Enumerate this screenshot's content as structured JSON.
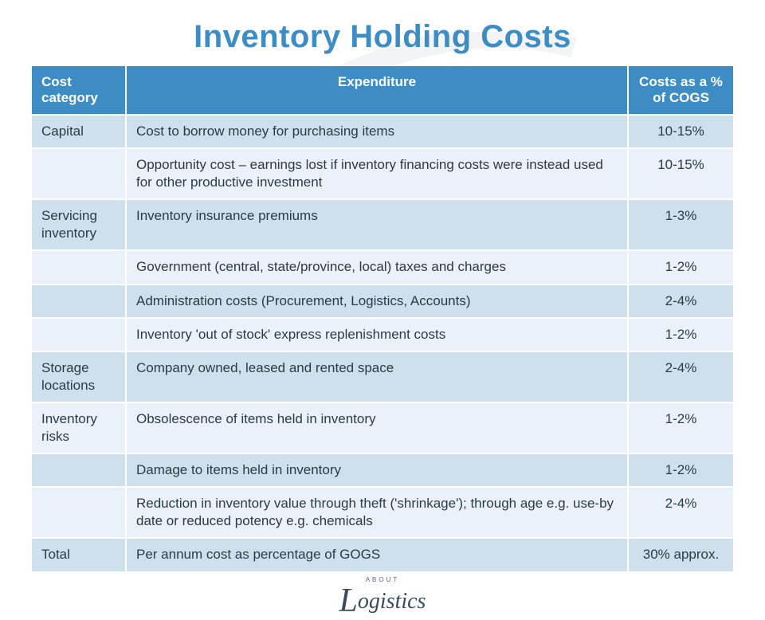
{
  "title": "Inventory Holding Costs",
  "columns": [
    {
      "key": "category",
      "label": "Cost category",
      "width": 118,
      "align": "left"
    },
    {
      "key": "expenditure",
      "label": "Expenditure",
      "width": null,
      "align": "center"
    },
    {
      "key": "cost",
      "label": "Costs as a % of COGS",
      "width": 132,
      "align": "center"
    }
  ],
  "header_bg": "#3d8cc4",
  "header_text_color": "#ffffff",
  "row_colors": {
    "dark": "#cfe0ed",
    "light": "#eaf1f8"
  },
  "text_color": "#2b3a4a",
  "title_color": "#3d8cc4",
  "background_color": "#ffffff",
  "border_color": "#ffffff",
  "font_family": "Segoe UI, Helvetica Neue, Arial, sans-serif",
  "title_fontsize": 40,
  "body_fontsize": 17,
  "rows": [
    {
      "category": "Capital",
      "expenditure": "Cost to borrow money for purchasing items",
      "cost": "10-15%",
      "shade": "dark"
    },
    {
      "category": "",
      "expenditure": "Opportunity cost – earnings lost if inventory financing costs were instead used for other productive investment",
      "cost": "10-15%",
      "shade": "light"
    },
    {
      "category": "Servicing inventory",
      "expenditure": "Inventory insurance premiums",
      "cost": "1-3%",
      "shade": "dark"
    },
    {
      "category": "",
      "expenditure": "Government (central, state/province, local) taxes and charges",
      "cost": "1-2%",
      "shade": "light"
    },
    {
      "category": "",
      "expenditure": "Administration costs (Procurement, Logistics, Accounts)",
      "cost": "2-4%",
      "shade": "dark"
    },
    {
      "category": "",
      "expenditure": "Inventory 'out of stock' express replenishment costs",
      "cost": "1-2%",
      "shade": "light"
    },
    {
      "category": "Storage locations",
      "expenditure": "Company owned, leased and rented space",
      "cost": "2-4%",
      "shade": "dark"
    },
    {
      "category": "Inventory risks",
      "expenditure": "Obsolescence of items held in inventory",
      "cost": "1-2%",
      "shade": "light"
    },
    {
      "category": "",
      "expenditure": "Damage to items held in inventory",
      "cost": "1-2%",
      "shade": "dark"
    },
    {
      "category": "",
      "expenditure": "Reduction in inventory value through theft ('shrinkage'); through age e.g. use-by date or reduced potency e.g. chemicals",
      "cost": "2-4%",
      "shade": "light"
    },
    {
      "category": "Total",
      "expenditure": "Per annum cost as percentage of GOGS",
      "cost": "30% approx.",
      "shade": "dark"
    }
  ],
  "footer": {
    "about": "ABOUT",
    "word": "ogistics",
    "initial": "L"
  }
}
